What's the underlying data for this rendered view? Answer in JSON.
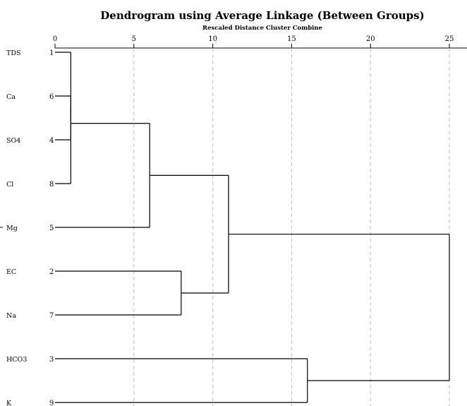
{
  "chart_data": {
    "type": "dendrogram",
    "title": "Dendrogram using Average Linkage (Between Groups)",
    "subtitle": "Rescaled Distance Cluster Combine",
    "x_ticks": [
      0,
      5,
      10,
      15,
      20,
      25
    ],
    "xlim": [
      0,
      25
    ],
    "leaves": [
      {
        "label": "TDS",
        "case": "1"
      },
      {
        "label": "Ca",
        "case": "6"
      },
      {
        "label": "SO4",
        "case": "4"
      },
      {
        "label": "Cl",
        "case": "8"
      },
      {
        "label": "Mg",
        "case": "5"
      },
      {
        "label": "EC",
        "case": "2"
      },
      {
        "label": "Na",
        "case": "7"
      },
      {
        "label": "HCO3",
        "case": "3"
      },
      {
        "label": "K",
        "case": "9"
      }
    ],
    "merges": [
      {
        "a": "TDS",
        "b": "Cl",
        "distance": 1
      },
      {
        "a": "TDS",
        "b": "Ca",
        "distance": 1
      },
      {
        "a": "TDS",
        "b": "SO4",
        "distance": 1
      },
      {
        "a": "EC",
        "b": "Na",
        "distance": 8
      },
      {
        "a": "TDS",
        "b": "Mg",
        "distance": 6
      },
      {
        "a": "TDS",
        "b": "EC",
        "distance": 11
      },
      {
        "a": "HCO3",
        "b": "K",
        "distance": 16
      },
      {
        "a": "TDS",
        "b": "HCO3",
        "distance": 25
      }
    ],
    "grid": "vertical dashed"
  }
}
